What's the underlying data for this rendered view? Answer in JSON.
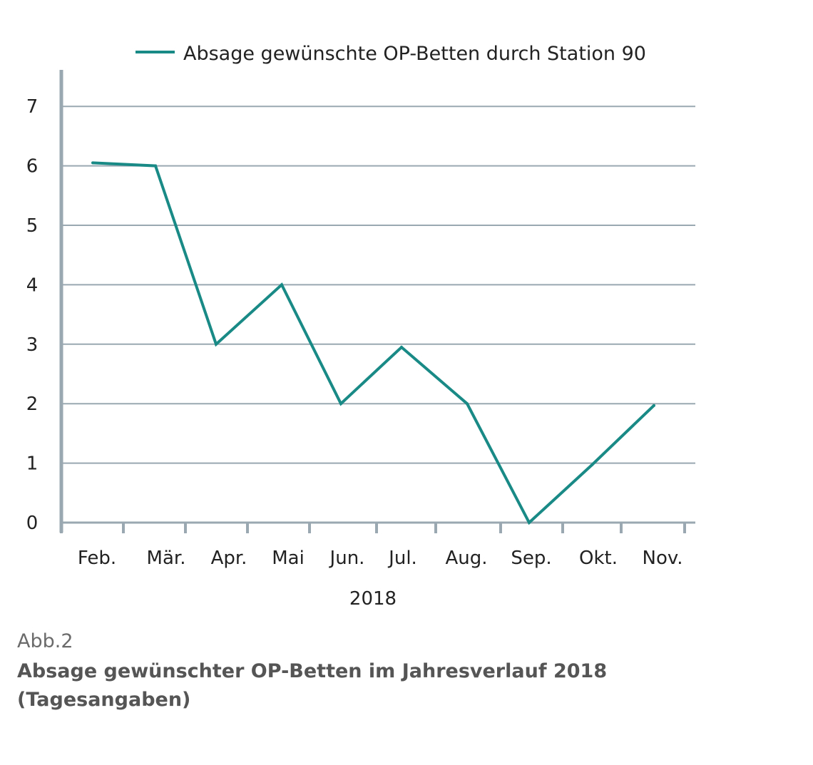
{
  "chart_data": {
    "type": "line",
    "categories": [
      "Feb.",
      "Mär.",
      "Apr.",
      "Mai",
      "Jun.",
      "Jul.",
      "Aug.",
      "Sep.",
      "Okt.",
      "Nov."
    ],
    "series": [
      {
        "name": "Absage gewünschte OP-Betten durch Station 90",
        "values": [
          6.05,
          6.0,
          3.0,
          4.0,
          2.0,
          2.95,
          2.0,
          0.0,
          0.97,
          1.97
        ],
        "color": "#1a8a86"
      }
    ],
    "y_ticks": [
      "0",
      "1",
      "2",
      "3",
      "4",
      "5",
      "6",
      "7"
    ],
    "ylim": [
      0,
      7.6
    ],
    "xlabel": "2018",
    "ylabel": "",
    "grid": true,
    "legend_position": "top-center",
    "axis_color": "#9aa8b2"
  },
  "caption": {
    "label": "Abb.2",
    "title": "Absage gewünschter OP-Betten im Jahresverlauf 2018 (Tagesangaben)"
  }
}
